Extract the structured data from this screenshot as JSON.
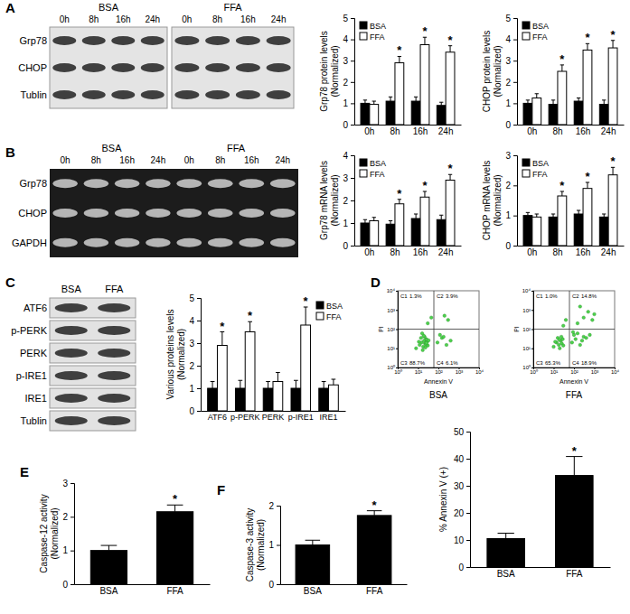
{
  "panel_labels": [
    "A",
    "B",
    "C",
    "D",
    "E",
    "F"
  ],
  "blots": [
    {
      "groups": [
        "BSA",
        "FFA"
      ],
      "lanes": [
        "0h",
        "8h",
        "16h",
        "24h"
      ],
      "rows": [
        "Grp78",
        "CHOP",
        "Tublin"
      ]
    },
    {
      "groups": [
        "BSA",
        "FFA"
      ],
      "lanes": [
        "0h",
        "8h",
        "16h",
        "24h"
      ],
      "rows": [
        "Grp78",
        "CHOP",
        "GAPDH"
      ]
    },
    {
      "groups": [
        "BSA",
        "FFA"
      ],
      "rows": [
        "ATF6",
        "p-PERK",
        "PERK",
        "p-IRE1",
        "IRE1",
        "Tublin"
      ]
    }
  ],
  "chart_data": [
    {
      "type": "bar",
      "y_label": [
        "Grp78 protein levels",
        "(Normalized)"
      ],
      "categories": [
        "0h",
        "8h",
        "16h",
        "24h"
      ],
      "series": [
        {
          "name": "BSA",
          "color": "#000000",
          "values": [
            1,
            1.1,
            1.1,
            0.9
          ],
          "errors": [
            0.15,
            0.2,
            0.2,
            0.15
          ]
        },
        {
          "name": "FFA",
          "color": "#ffffff",
          "values": [
            0.95,
            2.9,
            3.75,
            3.4
          ],
          "errors": [
            0.15,
            0.3,
            0.35,
            0.3
          ],
          "significance": [
            null,
            "*",
            "*",
            "*"
          ]
        }
      ],
      "ylim": [
        0,
        5
      ],
      "yticks": [
        0,
        1,
        2,
        3,
        4,
        5
      ],
      "legend": "top-left"
    },
    {
      "type": "bar",
      "y_label": [
        "CHOP protein levels",
        "(Normalized)"
      ],
      "categories": [
        "0h",
        "8h",
        "16h",
        "24h"
      ],
      "series": [
        {
          "name": "BSA",
          "color": "#000000",
          "values": [
            1,
            0.95,
            1.1,
            0.95
          ],
          "errors": [
            0.15,
            0.2,
            0.15,
            0.2
          ]
        },
        {
          "name": "FFA",
          "color": "#ffffff",
          "values": [
            1.25,
            2.5,
            3.5,
            3.6
          ],
          "errors": [
            0.2,
            0.3,
            0.3,
            0.35
          ],
          "significance": [
            null,
            "*",
            "*",
            "*"
          ]
        }
      ],
      "ylim": [
        0,
        5
      ],
      "yticks": [
        0,
        1,
        2,
        3,
        4,
        5
      ],
      "legend": "top-left"
    },
    {
      "type": "bar",
      "y_label": [
        "Grp78 mRNA levels",
        "(Normalized)"
      ],
      "categories": [
        "0h",
        "8h",
        "16h",
        "24h"
      ],
      "series": [
        {
          "name": "BSA",
          "color": "#000000",
          "values": [
            1,
            0.95,
            1.2,
            1.15
          ],
          "errors": [
            0.15,
            0.15,
            0.2,
            0.2
          ]
        },
        {
          "name": "FFA",
          "color": "#ffffff",
          "values": [
            1.1,
            1.85,
            2.15,
            2.9
          ],
          "errors": [
            0.15,
            0.2,
            0.25,
            0.25
          ],
          "significance": [
            null,
            "*",
            "*",
            "*"
          ]
        }
      ],
      "ylim": [
        0,
        4
      ],
      "yticks": [
        0,
        1,
        2,
        3,
        4
      ],
      "legend": "top-left"
    },
    {
      "type": "bar",
      "y_label": [
        "CHOP mRNA levels",
        "(Normalized)"
      ],
      "categories": [
        "0h",
        "8h",
        "16h",
        "24h"
      ],
      "series": [
        {
          "name": "BSA",
          "color": "#000000",
          "values": [
            1,
            0.95,
            1.05,
            0.95
          ],
          "errors": [
            0.1,
            0.1,
            0.12,
            0.1
          ]
        },
        {
          "name": "FFA",
          "color": "#ffffff",
          "values": [
            0.95,
            1.65,
            1.9,
            2.35
          ],
          "errors": [
            0.1,
            0.15,
            0.2,
            0.25
          ],
          "significance": [
            null,
            "*",
            "*",
            "*"
          ]
        }
      ],
      "ylim": [
        0,
        3
      ],
      "yticks": [
        0,
        1,
        2,
        3
      ],
      "legend": "top-left"
    },
    {
      "type": "bar",
      "y_label": [
        "Various proteins levels",
        "(Normalized)"
      ],
      "categories": [
        "ATF6",
        "p-PERK",
        "PERK",
        "p-IRE1",
        "IRE1"
      ],
      "series": [
        {
          "name": "BSA",
          "color": "#000000",
          "values": [
            1,
            1,
            1,
            1,
            1
          ],
          "errors": [
            0.3,
            0.35,
            0.3,
            0.35,
            0.3
          ]
        },
        {
          "name": "FFA",
          "color": "#ffffff",
          "values": [
            2.9,
            3.5,
            1.3,
            3.8,
            1.15
          ],
          "errors": [
            0.6,
            0.45,
            0.4,
            0.8,
            0.25
          ],
          "significance": [
            "*",
            "*",
            null,
            "*",
            null
          ]
        }
      ],
      "ylim": [
        0,
        5
      ],
      "yticks": [
        0,
        1,
        2,
        3,
        4,
        5
      ],
      "legend": "top-right"
    },
    {
      "type": "scatter",
      "title": "BSA",
      "x_label": "Annexin V",
      "y_label": "PI",
      "log": true,
      "color": "#4cd34c",
      "x": [
        8,
        12,
        15,
        18,
        20,
        22,
        25,
        28,
        30,
        14,
        17,
        21,
        24,
        27,
        11,
        19,
        23,
        26,
        33,
        16,
        90,
        150,
        250,
        120,
        300,
        200,
        30,
        45,
        180,
        400
      ],
      "y": [
        10,
        15,
        20,
        12,
        25,
        18,
        30,
        22,
        14,
        35,
        8,
        40,
        16,
        28,
        22,
        45,
        11,
        19,
        26,
        60,
        20,
        35,
        15,
        50,
        300,
        500,
        200,
        400,
        40,
        25
      ],
      "xlim": [
        1,
        10000
      ],
      "ylim": [
        1,
        10000
      ],
      "xticks": [
        {
          "value": 1,
          "label": "10⁰"
        },
        {
          "value": 10,
          "label": "10¹"
        },
        {
          "value": 100,
          "label": "10²"
        },
        {
          "value": 1000,
          "label": "10³"
        },
        {
          "value": 10000,
          "label": "10⁴"
        }
      ],
      "yticks": [
        {
          "value": 1,
          "label": "10⁰"
        },
        {
          "value": 10,
          "label": "10¹"
        },
        {
          "value": 100,
          "label": "10²"
        },
        {
          "value": 1000,
          "label": "10³"
        },
        {
          "value": 10000,
          "label": "10⁴"
        }
      ],
      "x_gate": 60,
      "y_gate": 100,
      "quadrant_labels": [
        "C1",
        "C2",
        "C3",
        "C4"
      ],
      "quadrant_values": [
        1.3,
        3.9,
        88.7,
        6.1
      ],
      "quadrant_value_labels": [
        "1.3%",
        "3.9%",
        "88.7%",
        "6.1%"
      ]
    },
    {
      "type": "scatter",
      "title": "FFA",
      "x_label": "Annexin V",
      "y_label": "PI",
      "log": true,
      "color": "#4cd34c",
      "x": [
        10,
        14,
        18,
        22,
        25,
        28,
        16,
        20,
        24,
        12,
        30,
        19,
        80,
        120,
        200,
        300,
        150,
        250,
        100,
        400,
        150,
        300,
        500,
        800,
        200,
        1000,
        30,
        40,
        600,
        90
      ],
      "y": [
        12,
        20,
        15,
        25,
        18,
        30,
        35,
        10,
        40,
        22,
        14,
        28,
        20,
        30,
        15,
        40,
        60,
        25,
        50,
        35,
        200,
        400,
        800,
        300,
        1500,
        600,
        150,
        300,
        50,
        70
      ],
      "xlim": [
        1,
        10000
      ],
      "ylim": [
        1,
        10000
      ],
      "xticks": [
        {
          "value": 1,
          "label": "10⁰"
        },
        {
          "value": 10,
          "label": "10¹"
        },
        {
          "value": 100,
          "label": "10²"
        },
        {
          "value": 1000,
          "label": "10³"
        },
        {
          "value": 10000,
          "label": "10⁴"
        }
      ],
      "yticks": [
        {
          "value": 1,
          "label": "10⁰"
        },
        {
          "value": 10,
          "label": "10¹"
        },
        {
          "value": 100,
          "label": "10²"
        },
        {
          "value": 1000,
          "label": "10³"
        },
        {
          "value": 10000,
          "label": "10⁴"
        }
      ],
      "x_gate": 60,
      "y_gate": 100,
      "quadrant_labels": [
        "C1",
        "C2",
        "C3",
        "C4"
      ],
      "quadrant_values": [
        1.0,
        14.8,
        65.3,
        18.9
      ],
      "quadrant_value_labels": [
        "1.0%",
        "14.8%",
        "65.3%",
        "18.9%"
      ]
    },
    {
      "type": "bar",
      "y_label": "% Annexin V (+)",
      "categories": [
        "BSA",
        "FFA"
      ],
      "color": "#000000",
      "values": [
        10.5,
        33.8
      ],
      "errors": [
        2,
        7
      ],
      "significance": [
        null,
        "*"
      ],
      "ylim": [
        0,
        50
      ],
      "yticks": [
        0,
        10,
        20,
        30,
        40,
        50
      ]
    },
    {
      "type": "bar",
      "y_label": [
        "Caspase-12 activity",
        "(Normalized)"
      ],
      "categories": [
        "BSA",
        "FFA"
      ],
      "color": "#000000",
      "values": [
        1,
        2.15
      ],
      "errors": [
        0.15,
        0.2
      ],
      "significance": [
        null,
        "*"
      ],
      "ylim": [
        0,
        3
      ],
      "yticks": [
        0,
        1,
        2,
        3
      ]
    },
    {
      "type": "bar",
      "y_label": [
        "Caspase-3 activity",
        "(Normalized)"
      ],
      "categories": [
        "BSA",
        "FFA"
      ],
      "color": "#000000",
      "values": [
        1,
        1.75
      ],
      "errors": [
        0.12,
        0.12
      ],
      "significance": [
        null,
        "*"
      ],
      "ylim": [
        0,
        2
      ],
      "yticks": [
        0,
        1,
        2
      ]
    }
  ]
}
